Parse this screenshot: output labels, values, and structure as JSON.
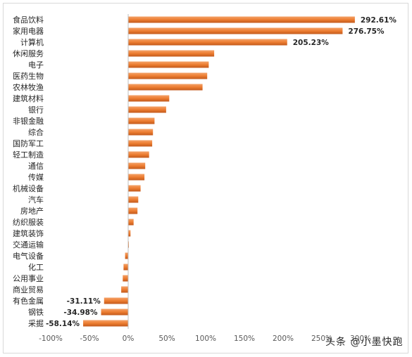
{
  "chart_data": {
    "type": "bar",
    "orientation": "horizontal",
    "categories": [
      "食品饮料",
      "家用电器",
      "计算机",
      "休闲服务",
      "电子",
      "医药生物",
      "农林牧渔",
      "建筑材料",
      "银行",
      "非银金融",
      "综合",
      "国防军工",
      "轻工制造",
      "通信",
      "传媒",
      "机械设备",
      "汽车",
      "房地产",
      "纺织服装",
      "建筑装饰",
      "交通运输",
      "电气设备",
      "化工",
      "公用事业",
      "商业贸易",
      "有色金属",
      "钢铁",
      "采掘"
    ],
    "values": [
      292.61,
      276.75,
      205.23,
      111,
      104,
      102,
      96,
      53,
      49,
      34,
      32,
      31,
      27,
      22,
      21,
      16,
      13,
      12,
      7,
      3,
      0.5,
      -4,
      -6,
      -7,
      -9,
      -31.11,
      -34.98,
      -58.14
    ],
    "data_labels": {
      "食品饮料": "292.61%",
      "家用电器": "276.75%",
      "计算机": "205.23%",
      "有色金属": "-31.11%",
      "钢铁": "-34.98%",
      "采掘": "-58.14%"
    },
    "xticks": [
      "-100%",
      "-50%",
      "0%",
      "50%",
      "100%",
      "150%",
      "200%",
      "250%",
      "300%"
    ],
    "xlim": [
      -100,
      300
    ],
    "bar_color": "#ed7d31",
    "grid": false
  },
  "watermark": "头条 @小墨快跑"
}
